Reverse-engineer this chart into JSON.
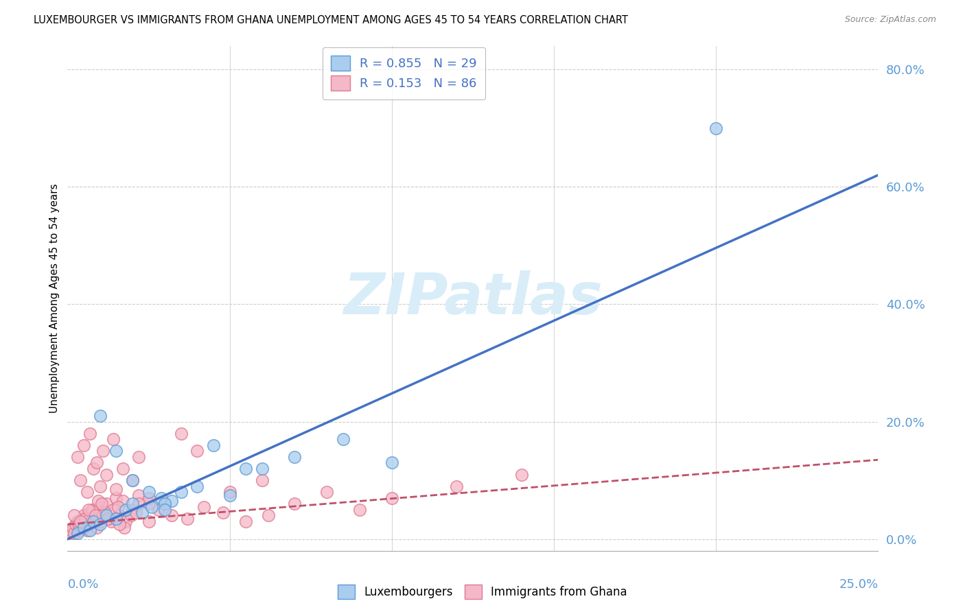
{
  "title": "LUXEMBOURGER VS IMMIGRANTS FROM GHANA UNEMPLOYMENT AMONG AGES 45 TO 54 YEARS CORRELATION CHART",
  "source": "Source: ZipAtlas.com",
  "ylabel": "Unemployment Among Ages 45 to 54 years",
  "ytick_labels": [
    "0.0%",
    "20.0%",
    "40.0%",
    "60.0%",
    "80.0%"
  ],
  "ytick_values": [
    0.0,
    20.0,
    40.0,
    60.0,
    80.0
  ],
  "xtick_label_left": "0.0%",
  "xtick_label_right": "25.0%",
  "xlim": [
    0.0,
    25.0
  ],
  "ylim": [
    -2.0,
    84.0
  ],
  "legend_r1": "R = 0.855",
  "legend_n1": "N = 29",
  "legend_r2": "R = 0.153",
  "legend_n2": "N = 86",
  "color_blue_fill": "#aaccee",
  "color_blue_edge": "#5b9bd5",
  "color_pink_fill": "#f4b8c8",
  "color_pink_edge": "#e07890",
  "color_blue_line": "#4472c4",
  "color_pink_line": "#c0506a",
  "color_tick_label": "#5b9bd5",
  "watermark_color": "#d8edf8",
  "watermark_text": "ZIPatlas",
  "grid_color": "#cccccc",
  "blue_line_x0": 0.0,
  "blue_line_y0": 0.0,
  "blue_line_x1": 25.0,
  "blue_line_y1": 62.0,
  "pink_line_x0": 0.0,
  "pink_line_y0": 2.5,
  "pink_line_x1": 25.0,
  "pink_line_y1": 13.5,
  "blue_scatter_x": [
    0.3,
    0.5,
    0.7,
    0.8,
    1.0,
    1.2,
    1.5,
    1.8,
    2.0,
    2.3,
    2.6,
    2.9,
    3.2,
    3.5,
    4.0,
    5.0,
    6.0,
    7.0,
    8.5,
    10.0,
    1.0,
    1.5,
    2.0,
    2.5,
    3.0,
    4.5,
    20.0,
    3.0,
    5.5
  ],
  "blue_scatter_y": [
    1.0,
    2.0,
    1.5,
    3.0,
    2.5,
    4.0,
    3.5,
    5.0,
    6.0,
    4.5,
    5.5,
    7.0,
    6.5,
    8.0,
    9.0,
    7.5,
    12.0,
    14.0,
    17.0,
    13.0,
    21.0,
    15.0,
    10.0,
    8.0,
    6.0,
    16.0,
    70.0,
    5.0,
    12.0
  ],
  "pink_scatter_x": [
    0.05,
    0.1,
    0.15,
    0.2,
    0.25,
    0.3,
    0.35,
    0.4,
    0.45,
    0.5,
    0.5,
    0.6,
    0.6,
    0.7,
    0.7,
    0.8,
    0.8,
    0.9,
    0.9,
    1.0,
    1.0,
    1.1,
    1.2,
    1.3,
    1.4,
    1.5,
    1.6,
    1.7,
    1.8,
    2.0,
    2.2,
    2.5,
    0.3,
    0.4,
    0.6,
    0.8,
    1.0,
    1.2,
    1.5,
    2.0,
    2.5,
    3.0,
    0.5,
    0.7,
    0.9,
    1.1,
    1.4,
    1.7,
    2.2,
    0.2,
    0.35,
    0.55,
    0.75,
    0.95,
    1.15,
    1.35,
    1.55,
    1.75,
    1.95,
    2.2,
    2.5,
    2.8,
    3.2,
    3.7,
    4.2,
    4.8,
    5.5,
    6.2,
    3.5,
    4.0,
    5.0,
    6.0,
    7.0,
    8.0,
    9.0,
    10.0,
    12.0,
    14.0,
    0.4,
    0.65,
    0.85,
    1.05,
    1.25,
    1.6,
    2.1
  ],
  "pink_scatter_y": [
    1.0,
    1.5,
    2.0,
    1.0,
    2.5,
    3.0,
    1.5,
    2.0,
    3.5,
    4.0,
    2.0,
    3.0,
    1.5,
    4.5,
    2.5,
    3.0,
    5.0,
    2.0,
    4.0,
    5.5,
    3.0,
    4.0,
    6.0,
    3.5,
    5.0,
    7.0,
    4.0,
    6.5,
    3.0,
    5.0,
    7.5,
    6.0,
    14.0,
    10.0,
    8.0,
    12.0,
    9.0,
    11.0,
    8.5,
    10.0,
    7.0,
    6.0,
    16.0,
    18.0,
    13.0,
    15.0,
    17.0,
    12.0,
    14.0,
    4.0,
    2.5,
    3.5,
    5.0,
    6.5,
    4.5,
    3.0,
    5.5,
    2.0,
    4.0,
    6.0,
    3.0,
    5.0,
    4.0,
    3.5,
    5.5,
    4.5,
    3.0,
    4.0,
    18.0,
    15.0,
    8.0,
    10.0,
    6.0,
    8.0,
    5.0,
    7.0,
    9.0,
    11.0,
    3.0,
    5.0,
    4.0,
    6.0,
    3.5,
    2.5,
    4.5
  ]
}
